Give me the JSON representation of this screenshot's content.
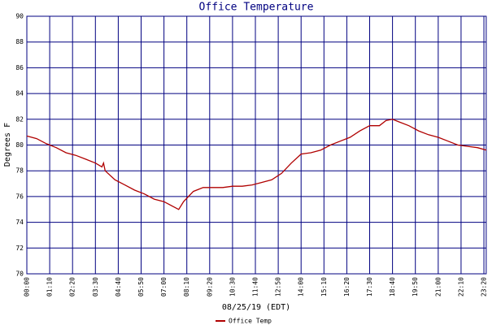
{
  "chart_data": {
    "type": "line",
    "title": "Office Temperature",
    "y_label": "Degrees F",
    "x_label": "08/25/19 (EDT)",
    "x": [
      "00:00",
      "00:30",
      "01:00",
      "01:30",
      "02:00",
      "02:30",
      "03:00",
      "03:30",
      "03:50",
      "03:55",
      "04:00",
      "04:30",
      "05:00",
      "05:30",
      "06:00",
      "06:30",
      "07:00",
      "07:30",
      "07:45",
      "08:00",
      "08:30",
      "09:00",
      "09:30",
      "10:00",
      "10:30",
      "11:00",
      "11:30",
      "12:00",
      "12:30",
      "13:00",
      "13:30",
      "14:00",
      "14:30",
      "15:00",
      "15:30",
      "16:00",
      "16:30",
      "17:00",
      "17:30",
      "18:00",
      "18:20",
      "18:40",
      "19:00",
      "19:30",
      "20:00",
      "20:30",
      "21:00",
      "21:30",
      "22:00",
      "22:30",
      "23:00",
      "23:27"
    ],
    "series": [
      {
        "name": "Office Temp",
        "color": "#b00000",
        "values": [
          80.7,
          80.5,
          80.1,
          79.8,
          79.4,
          79.2,
          78.9,
          78.6,
          78.3,
          78.6,
          78.0,
          77.3,
          76.9,
          76.5,
          76.2,
          75.8,
          75.6,
          75.2,
          75.0,
          75.6,
          76.4,
          76.7,
          76.7,
          76.7,
          76.8,
          76.8,
          76.9,
          77.1,
          77.3,
          77.8,
          78.6,
          79.3,
          79.4,
          79.6,
          80.0,
          80.3,
          80.6,
          81.1,
          81.5,
          81.5,
          81.9,
          82.0,
          81.8,
          81.5,
          81.1,
          80.8,
          80.6,
          80.3,
          80.0,
          79.9,
          79.8,
          79.6
        ]
      }
    ],
    "xlim": [
      "00:00",
      "23:27"
    ],
    "xticks": [
      "00:00",
      "01:10",
      "02:20",
      "03:30",
      "04:40",
      "05:50",
      "07:00",
      "08:10",
      "09:20",
      "10:30",
      "11:40",
      "12:50",
      "14:00",
      "15:10",
      "16:20",
      "17:30",
      "18:40",
      "19:50",
      "21:00",
      "22:10",
      "23:20"
    ],
    "ylim": [
      70,
      90
    ],
    "yticks": [
      70,
      72,
      74,
      76,
      78,
      80,
      82,
      84,
      86,
      88,
      90
    ],
    "grid": true,
    "grid_color": "#000080"
  }
}
